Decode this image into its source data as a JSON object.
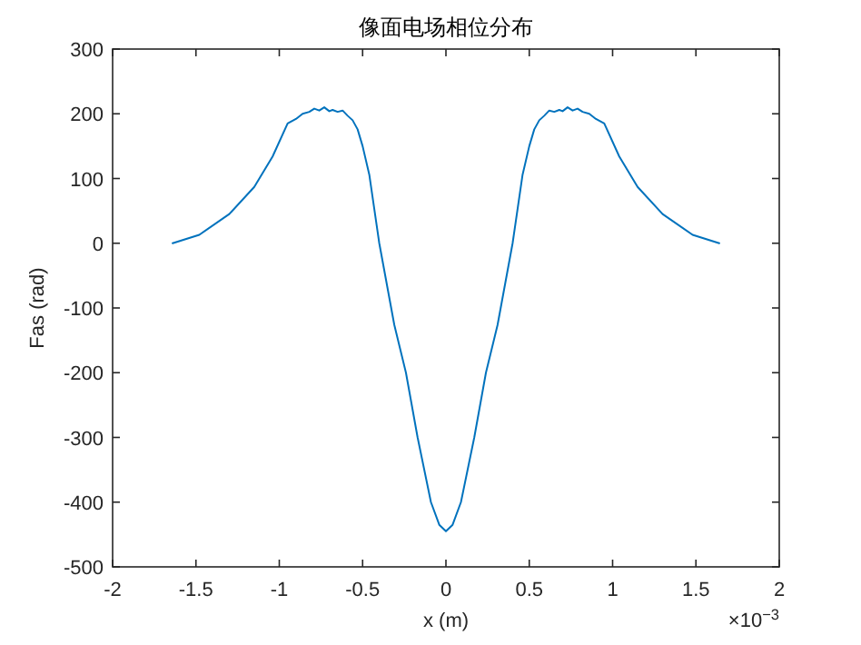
{
  "chart_data": {
    "type": "line",
    "title": "像面电场相位分布",
    "xlabel": "x (m)",
    "ylabel": "Fas (rad)",
    "annotations": [
      "×10$^{−3}$"
    ],
    "x": [
      -1.64,
      -1.48,
      -1.3,
      -1.15,
      -1.04,
      -0.95,
      -0.9,
      -0.86,
      -0.82,
      -0.79,
      -0.76,
      -0.73,
      -0.7,
      -0.68,
      -0.65,
      -0.62,
      -0.59,
      -0.56,
      -0.53,
      -0.5,
      -0.46,
      -0.4,
      -0.31,
      -0.24,
      -0.17,
      -0.09,
      -0.04,
      0,
      0.04,
      0.09,
      0.17,
      0.24,
      0.31,
      0.4,
      0.46,
      0.5,
      0.53,
      0.56,
      0.59,
      0.62,
      0.65,
      0.68,
      0.7,
      0.73,
      0.76,
      0.79,
      0.82,
      0.86,
      0.9,
      0.95,
      1.04,
      1.15,
      1.3,
      1.48,
      1.64
    ],
    "series": [
      {
        "color": "#0072bd",
        "values": [
          0,
          13,
          45,
          87,
          134,
          185,
          192,
          200,
          203,
          208,
          205,
          210,
          204,
          206,
          203,
          205,
          197,
          190,
          176,
          150,
          106,
          0,
          -126,
          -200,
          -300,
          -400,
          -435,
          -445,
          -435,
          -400,
          -300,
          -200,
          -126,
          0,
          106,
          150,
          176,
          190,
          197,
          205,
          203,
          206,
          204,
          210,
          205,
          208,
          203,
          200,
          192,
          185,
          134,
          87,
          45,
          13,
          0
        ]
      }
    ],
    "xlim": [
      -2,
      2
    ],
    "xticks": [
      -2,
      -1.5,
      -1,
      -0.5,
      0,
      0.5,
      1,
      1.5,
      2
    ],
    "ylim": [
      -500,
      300
    ],
    "yticks": [
      -500,
      -400,
      -300,
      -200,
      -100,
      0,
      100,
      200,
      300
    ],
    "marker": "none",
    "line_style": "solid"
  }
}
